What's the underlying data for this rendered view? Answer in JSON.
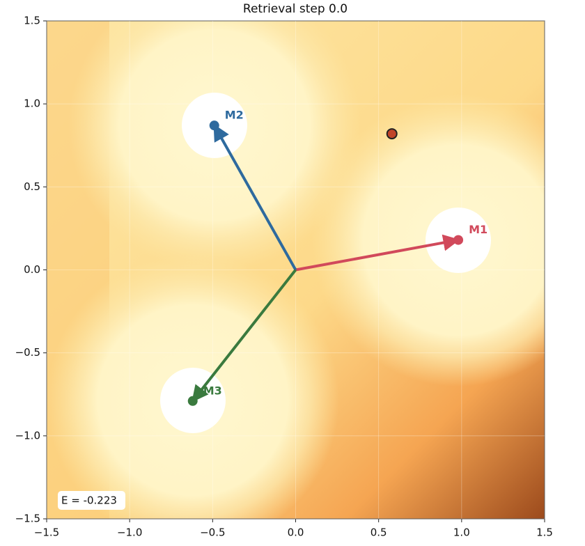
{
  "chart_data": {
    "type": "scatter",
    "title": "Retrieval step 0.0",
    "annotation": "E = -0.223",
    "xlim": [
      -1.5,
      1.5
    ],
    "ylim": [
      -1.5,
      1.5
    ],
    "xticks": [
      {
        "value": -1.5,
        "label": "−1.5"
      },
      {
        "value": -1,
        "label": "−1.0"
      },
      {
        "value": -0.5,
        "label": "−0.5"
      },
      {
        "value": 0,
        "label": "0.0"
      },
      {
        "value": 0.5,
        "label": "0.5"
      },
      {
        "value": 1,
        "label": "1.0"
      },
      {
        "value": 1.5,
        "label": "1.5"
      }
    ],
    "yticks": [
      {
        "value": -1.5,
        "label": "−1.5"
      },
      {
        "value": -1,
        "label": "−1.0"
      },
      {
        "value": -0.5,
        "label": "−0.5"
      },
      {
        "value": 0,
        "label": "0.0"
      },
      {
        "value": 0.5,
        "label": "0.5"
      },
      {
        "value": 1,
        "label": "1.0"
      },
      {
        "value": 1.5,
        "label": "1.5"
      }
    ],
    "grid": true,
    "series": [
      {
        "name": "M1",
        "color": "#d1495b",
        "x": [
          0.98
        ],
        "values": [
          0.18
        ]
      },
      {
        "name": "M2",
        "color": "#2e6a9e",
        "x": [
          -0.49
        ],
        "values": [
          0.87
        ]
      },
      {
        "name": "M3",
        "color": "#3a7a3e",
        "x": [
          -0.62
        ],
        "values": [
          -0.79
        ]
      }
    ],
    "query": {
      "color": "#c0442a",
      "x": [
        0.58
      ],
      "values": [
        0.82
      ]
    }
  }
}
